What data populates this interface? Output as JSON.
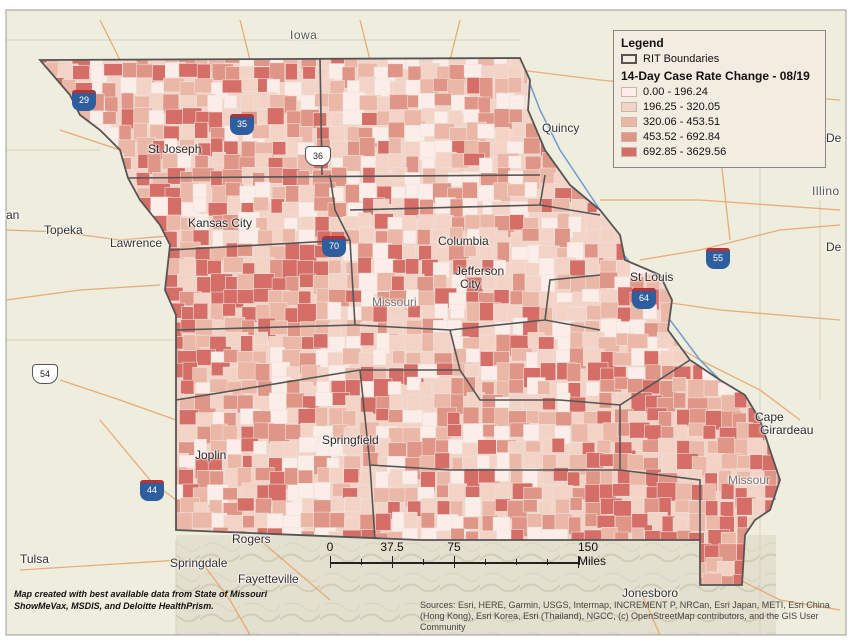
{
  "legend": {
    "title": "Legend",
    "boundary_label": "RIT Boundaries",
    "subtitle": "14-Day Case Rate Change - 08/19",
    "classes": [
      {
        "label": "0.00 - 196.24",
        "color": "#fbeee8"
      },
      {
        "label": "196.25 - 320.05",
        "color": "#f3d3c6"
      },
      {
        "label": "320.06 - 453.51",
        "color": "#ebb8a7"
      },
      {
        "label": "453.52 - 692.84",
        "color": "#df9686"
      },
      {
        "label": "692.85 - 3629.56",
        "color": "#d46e66"
      }
    ]
  },
  "places": {
    "iowa": "Iowa",
    "quincy": "Quincy",
    "st_joseph": "St Joseph",
    "topeka": "Topeka",
    "lawrence": "Lawrence",
    "kansas_city": "Kansas City",
    "columbia": "Columbia",
    "jefferson_city": "Jefferson",
    "jefferson_city_2": "City",
    "missouri": "Missouri",
    "st_louis": "St Louis",
    "illinois": "Illino",
    "cape_girardeau": "Cape",
    "cape_girardeau_2": "Girardeau",
    "springfield": "Springfield",
    "joplin": "Joplin",
    "rogers": "Rogers",
    "springdale": "Springdale",
    "fayetteville": "Fayetteville",
    "tulsa": "Tulsa",
    "jonesboro": "Jonesboro",
    "mississippi_trunc": "Missour",
    "edge_left": "an",
    "edge_right_1": "De",
    "edge_right_2": "De"
  },
  "shields": {
    "i35": "35",
    "i29": "29",
    "i70": "70",
    "i55": "55",
    "i44": "44",
    "i64": "64",
    "us54": "54",
    "us36": "36"
  },
  "scale": {
    "ticks": [
      "0",
      "37.5",
      "75",
      "150 Miles"
    ]
  },
  "credit": "Map created with best available data from State of Missouri ShowMeVax, MSDIS, and Deloitte HealthPrism.",
  "sources": "Sources: Esri, HERE, Garmin, USGS, Intermap, INCREMENT P, NRCan, Esri Japan, METI, Esri China (Hong Kong), Esri Korea, Esri (Thailand), NGCC, (c) OpenStreetMap contributors, and the GIS User Community"
}
